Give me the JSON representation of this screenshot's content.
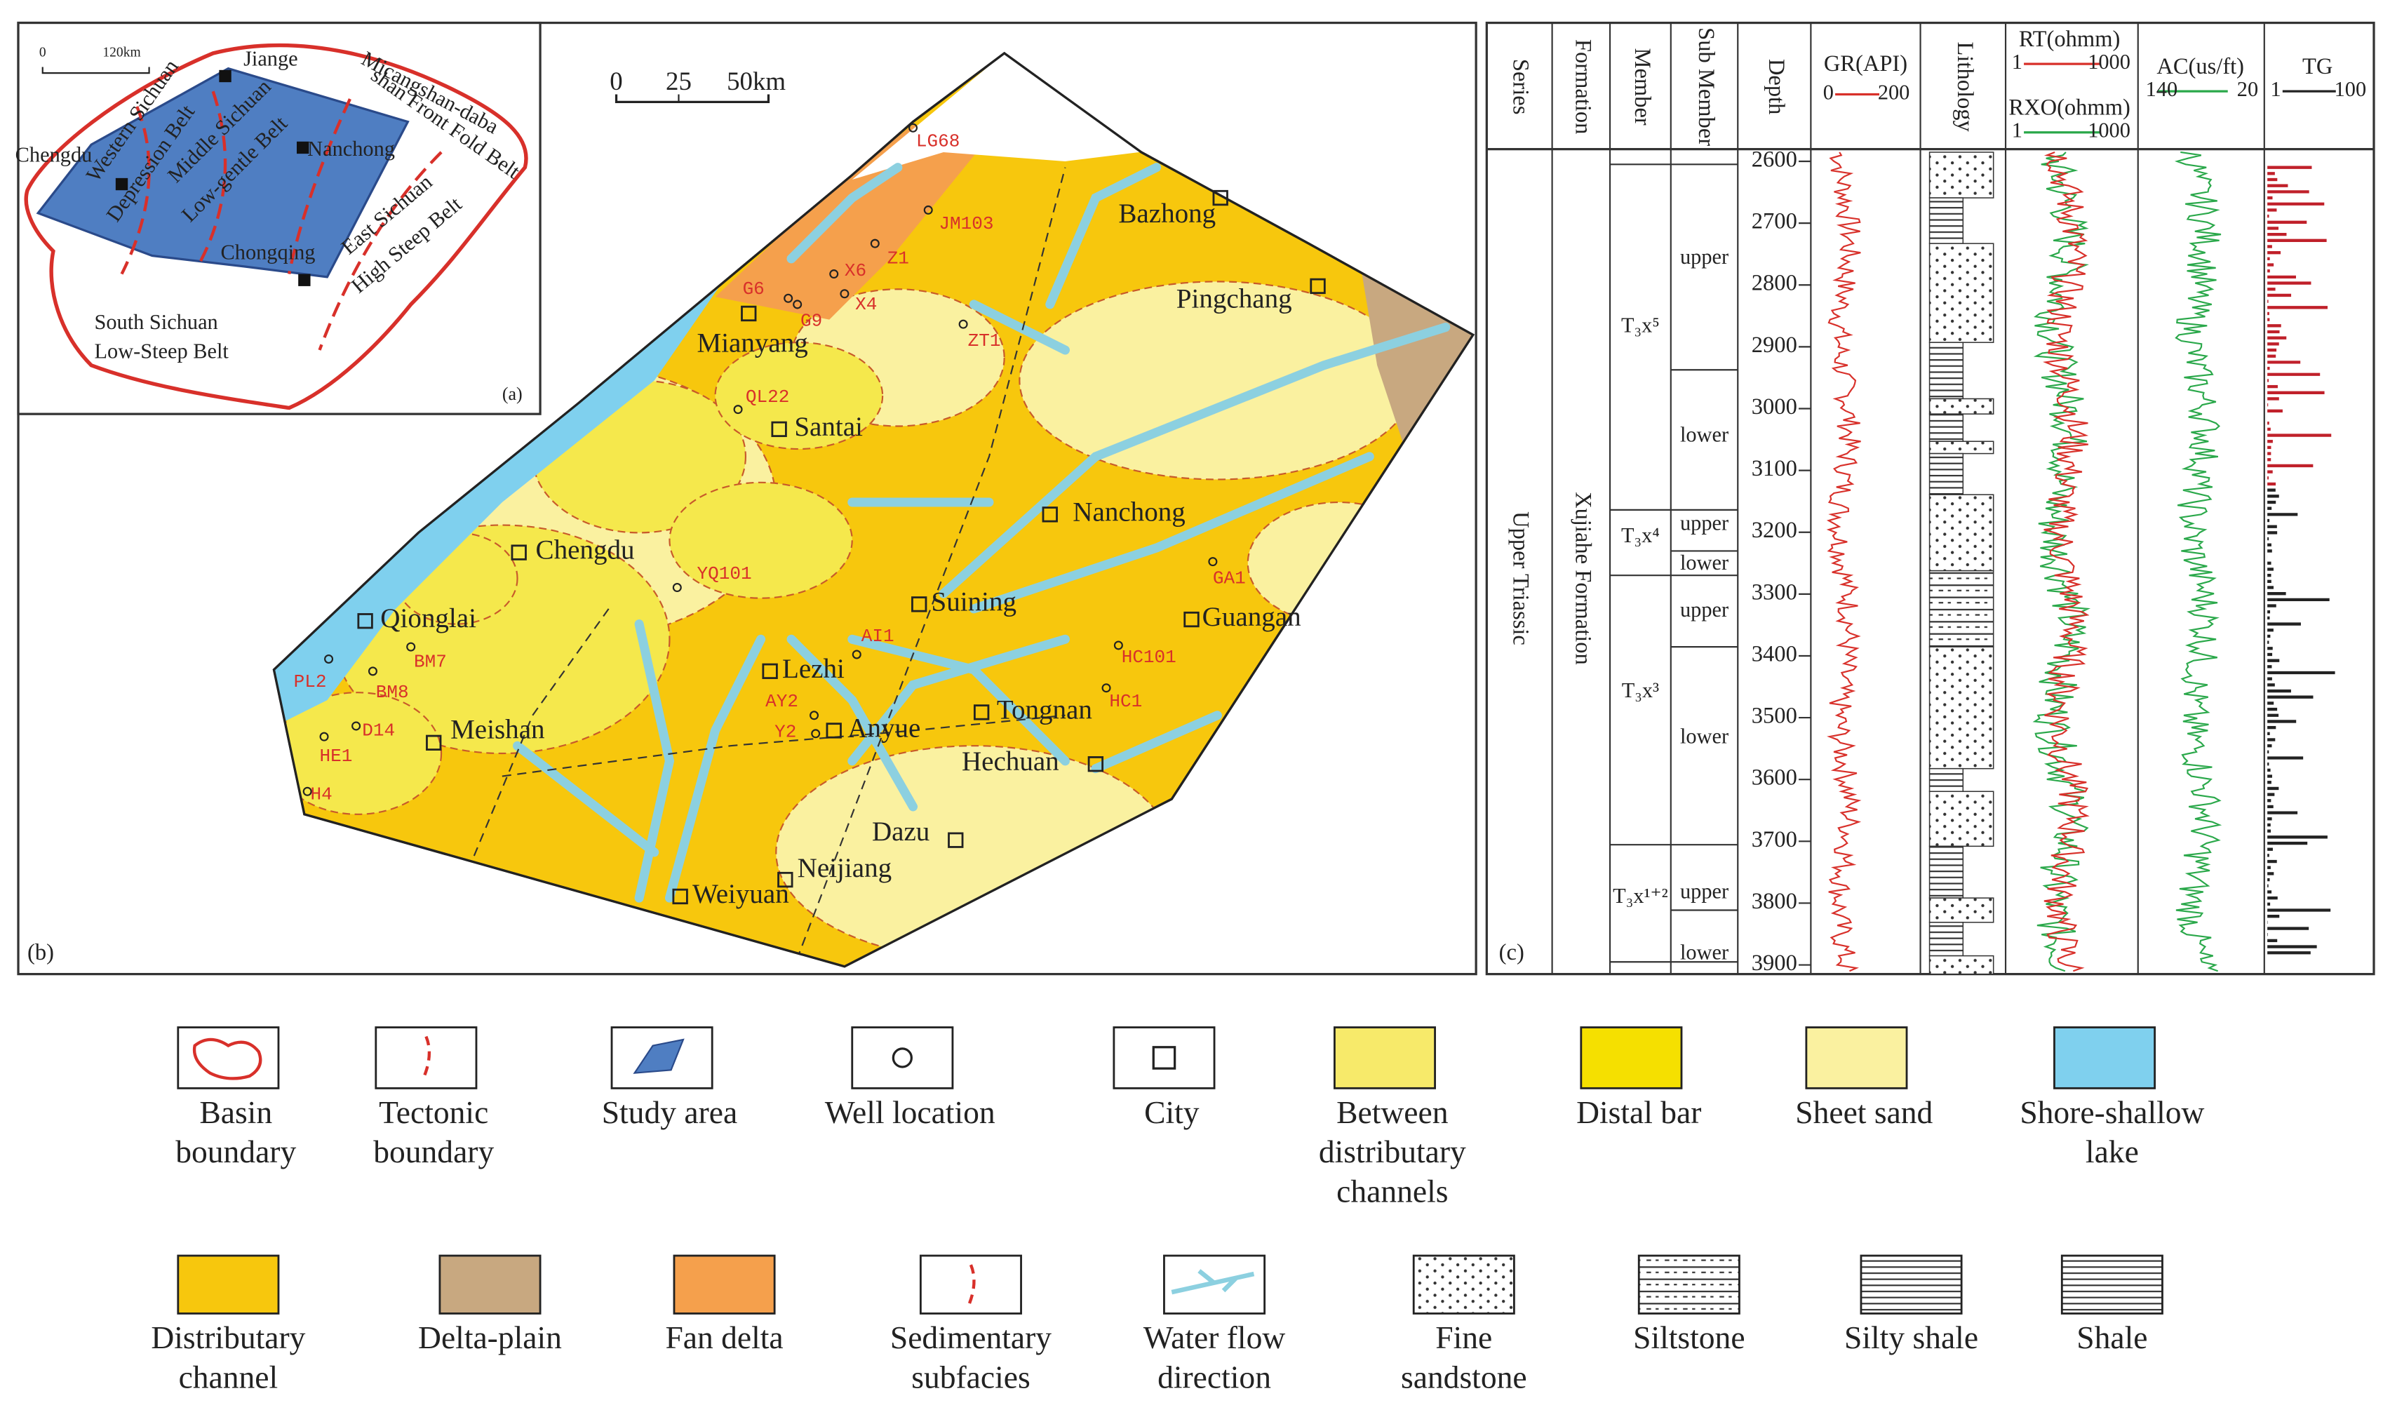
{
  "inset": {
    "panel_label": "(a)",
    "scale": [
      "0",
      "120km"
    ],
    "labels": [
      "Jiange",
      "Micangshan-daba",
      "shan Front Fold Belt",
      "Western Sichuan",
      "Depression Belt",
      "Middle Sichuan",
      "Low-gentle Belt",
      "Nanchong",
      "Chengdu",
      "East Sichuan",
      "High Steep Belt",
      "Chongqing",
      "South Sichuan",
      "Low-Steep Belt"
    ]
  },
  "map": {
    "panel_label": "(b)",
    "scale": [
      "0",
      "25",
      "50km"
    ],
    "cities": [
      "Bazhong",
      "Pingchang",
      "Mianyang",
      "Santai",
      "Nanchong",
      "Chengdu",
      "Suining",
      "Guangan",
      "Qionglai",
      "Lezhi",
      "Tongnan",
      "Anyue",
      "Meishan",
      "Hechuan",
      "Dazu",
      "Neijiang",
      "Weiyuan"
    ],
    "wells": [
      "LG68",
      "JM103",
      "Z1",
      "X6",
      "X4",
      "G6",
      "G9",
      "ZT1",
      "QL22",
      "YQ101",
      "AI1",
      "GA1",
      "HC101",
      "HC1",
      "AY2",
      "Y2",
      "PL2",
      "BM7",
      "BM8",
      "D14",
      "HE1",
      "H4"
    ]
  },
  "log": {
    "panel_label": "(c)",
    "headers": [
      "Series",
      "Formation",
      "Member",
      "Sub Member",
      "Depth",
      "Lithology"
    ],
    "curves": [
      {
        "name": "GR(API)",
        "range": [
          "0",
          "200"
        ]
      },
      {
        "name": "RT(ohmm)",
        "range": [
          "1",
          "1000"
        ]
      },
      {
        "name": "RXO(ohmm)",
        "range": [
          "1",
          "1000"
        ]
      },
      {
        "name": "AC(us/ft)",
        "range": [
          "140",
          "20"
        ]
      },
      {
        "name": "TG",
        "range": [
          "1",
          "100"
        ]
      }
    ],
    "depths": [
      2600,
      2700,
      2800,
      2900,
      3000,
      3100,
      3200,
      3300,
      3400,
      3500,
      3600,
      3700,
      3800,
      3900
    ],
    "series": "Upper Triassic",
    "formation": "Xujiahe Formation",
    "members": [
      "T₃x⁵",
      "T₃x⁴",
      "T₃x³",
      "T₃x¹⁺²"
    ],
    "sub_members": [
      "upper",
      "lower",
      "upper",
      "lower",
      "upper",
      "lower",
      "upper",
      "lower"
    ]
  },
  "legend": [
    [
      "Basin",
      "boundary"
    ],
    [
      "Tectonic",
      "boundary"
    ],
    [
      "Study area"
    ],
    [
      "Well location"
    ],
    [
      "City"
    ],
    [
      "Between",
      "distributary",
      "channels"
    ],
    [
      "Distal bar"
    ],
    [
      "Sheet sand"
    ],
    [
      "Shore-shallow",
      "lake"
    ],
    [
      "Distributary",
      "channel"
    ],
    [
      "Delta-plain"
    ],
    [
      "Fan delta"
    ],
    [
      "Sedimentary",
      "subfacies"
    ],
    [
      "Water flow",
      "direction"
    ],
    [
      "Fine",
      "sandstone"
    ],
    [
      "Siltstone"
    ],
    [
      "Silty shale"
    ],
    [
      "Shale"
    ]
  ]
}
